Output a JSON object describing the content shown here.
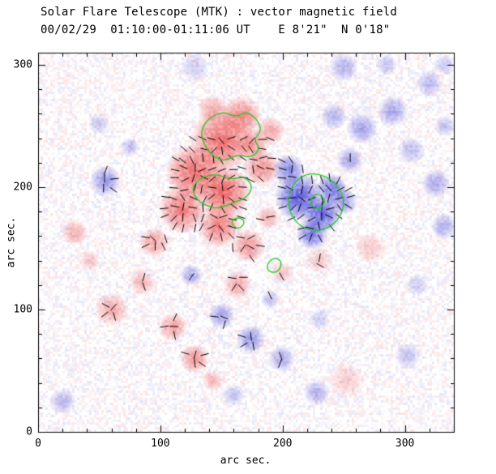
{
  "chart_data": {
    "type": "heatmap",
    "title": "Solar Flare Telescope (MTK) : vector magnetic field",
    "subtitle": "00/02/29  01:10:00-01:11:06 UT    E 8'21\"  N 0'18\"",
    "xlabel": "arc sec.",
    "ylabel": "arc sec.",
    "xlim": [
      0,
      340
    ],
    "ylim": [
      0,
      310
    ],
    "x_ticks": [
      "0",
      "100",
      "200",
      "300"
    ],
    "x_tick_values": [
      0,
      100,
      200,
      300
    ],
    "y_ticks": [
      "0",
      "100",
      "200",
      "300"
    ],
    "y_tick_values": [
      0,
      100,
      200,
      300
    ],
    "minor_tick_step": 20,
    "colors": {
      "positive_polarity": "#eb3c3c",
      "negative_polarity": "#3c3cd7",
      "vector": "#000000",
      "contour": "#1ec81e",
      "axis": "#000000",
      "background": "#ffffff"
    },
    "blob_format": [
      "x_arcsec",
      "y_arcsec",
      "radius_arcsec",
      "intensity_0to1",
      "polarity(+1=red positive, -1=blue negative)"
    ],
    "blobs": [
      [
        150,
        238,
        26,
        0.85,
        1
      ],
      [
        166,
        258,
        17,
        0.7,
        1
      ],
      [
        143,
        263,
        13,
        0.5,
        1
      ],
      [
        128,
        212,
        24,
        0.85,
        1
      ],
      [
        152,
        196,
        22,
        0.9,
        1
      ],
      [
        118,
        182,
        20,
        0.8,
        1
      ],
      [
        148,
        168,
        18,
        0.75,
        1
      ],
      [
        172,
        152,
        14,
        0.6,
        1
      ],
      [
        183,
        216,
        15,
        0.65,
        1
      ],
      [
        190,
        246,
        12,
        0.5,
        1
      ],
      [
        175,
        235,
        14,
        0.6,
        1
      ],
      [
        188,
        175,
        10,
        0.45,
        1
      ],
      [
        163,
        120,
        12,
        0.5,
        1
      ],
      [
        95,
        155,
        13,
        0.5,
        1
      ],
      [
        30,
        163,
        11,
        0.45,
        1
      ],
      [
        42,
        140,
        9,
        0.3,
        1
      ],
      [
        60,
        100,
        14,
        0.5,
        1
      ],
      [
        85,
        122,
        11,
        0.4,
        1
      ],
      [
        110,
        86,
        12,
        0.55,
        1
      ],
      [
        128,
        60,
        12,
        0.6,
        1
      ],
      [
        143,
        42,
        9,
        0.4,
        1
      ],
      [
        200,
        130,
        9,
        0.35,
        1
      ],
      [
        230,
        140,
        11,
        0.3,
        1
      ],
      [
        272,
        150,
        13,
        0.3,
        1
      ],
      [
        252,
        42,
        15,
        0.28,
        1
      ],
      [
        213,
        192,
        20,
        0.95,
        -1
      ],
      [
        232,
        178,
        16,
        0.9,
        -1
      ],
      [
        224,
        162,
        13,
        0.8,
        -1
      ],
      [
        240,
        198,
        13,
        0.8,
        -1
      ],
      [
        205,
        214,
        13,
        0.7,
        -1
      ],
      [
        250,
        188,
        11,
        0.6,
        -1
      ],
      [
        255,
        222,
        11,
        0.5,
        -1
      ],
      [
        265,
        248,
        13,
        0.55,
        -1
      ],
      [
        290,
        262,
        13,
        0.5,
        -1
      ],
      [
        242,
        258,
        11,
        0.45,
        -1
      ],
      [
        305,
        230,
        11,
        0.4,
        -1
      ],
      [
        325,
        203,
        12,
        0.5,
        -1
      ],
      [
        332,
        168,
        11,
        0.45,
        -1
      ],
      [
        310,
        120,
        9,
        0.3,
        -1
      ],
      [
        302,
        62,
        11,
        0.35,
        -1
      ],
      [
        55,
        205,
        13,
        0.6,
        -1
      ],
      [
        75,
        233,
        8,
        0.4,
        -1
      ],
      [
        50,
        252,
        9,
        0.3,
        -1
      ],
      [
        125,
        128,
        9,
        0.5,
        -1
      ],
      [
        150,
        95,
        11,
        0.55,
        -1
      ],
      [
        174,
        76,
        12,
        0.6,
        -1
      ],
      [
        199,
        60,
        11,
        0.5,
        -1
      ],
      [
        228,
        32,
        11,
        0.45,
        -1
      ],
      [
        160,
        30,
        9,
        0.35,
        -1
      ],
      [
        230,
        92,
        9,
        0.3,
        -1
      ],
      [
        190,
        108,
        8,
        0.35,
        -1
      ],
      [
        20,
        25,
        11,
        0.4,
        -1
      ],
      [
        128,
        298,
        12,
        0.3,
        -1
      ],
      [
        250,
        298,
        12,
        0.45,
        -1
      ],
      [
        285,
        300,
        9,
        0.35,
        -1
      ],
      [
        320,
        285,
        11,
        0.4,
        -1
      ],
      [
        333,
        250,
        9,
        0.35,
        -1
      ],
      [
        333,
        300,
        9,
        0.3,
        -1
      ]
    ],
    "vectors": {
      "x0": 55,
      "x1": 255,
      "y0": 55,
      "y1": 240,
      "step": 8,
      "threshold": 0.22,
      "length": 7
    },
    "contours": [
      [
        [
          133,
          247
        ],
        [
          140,
          257
        ],
        [
          152,
          262
        ],
        [
          162,
          257
        ],
        [
          170,
          262
        ],
        [
          179,
          256
        ],
        [
          183,
          246
        ],
        [
          176,
          239
        ],
        [
          182,
          231
        ],
        [
          174,
          224
        ],
        [
          163,
          227
        ],
        [
          152,
          221
        ],
        [
          142,
          226
        ],
        [
          135,
          236
        ]
      ],
      [
        [
          126,
          200
        ],
        [
          133,
          208
        ],
        [
          146,
          211
        ],
        [
          158,
          206
        ],
        [
          169,
          209
        ],
        [
          176,
          200
        ],
        [
          170,
          191
        ],
        [
          158,
          187
        ],
        [
          147,
          182
        ],
        [
          135,
          186
        ],
        [
          128,
          192
        ]
      ],
      [
        [
          204,
          190
        ],
        [
          209,
          204
        ],
        [
          221,
          212
        ],
        [
          236,
          209
        ],
        [
          247,
          199
        ],
        [
          251,
          186
        ],
        [
          245,
          172
        ],
        [
          232,
          164
        ],
        [
          217,
          166
        ],
        [
          207,
          176
        ]
      ],
      [
        [
          221,
          188
        ],
        [
          228,
          196
        ],
        [
          236,
          189
        ],
        [
          229,
          180
        ]
      ],
      [
        [
          187,
          137
        ],
        [
          193,
          143
        ],
        [
          200,
          139
        ],
        [
          196,
          130
        ],
        [
          188,
          131
        ]
      ],
      [
        [
          157,
          171
        ],
        [
          163,
          176
        ],
        [
          170,
          172
        ],
        [
          164,
          165
        ]
      ]
    ]
  }
}
